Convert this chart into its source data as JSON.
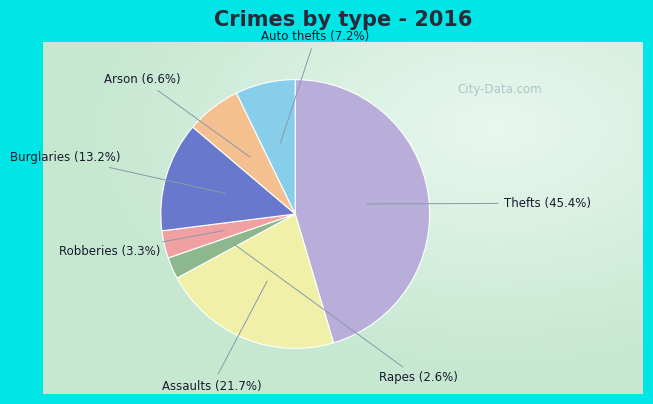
{
  "title": "Crimes by type - 2016",
  "labels": [
    "Thefts",
    "Assaults",
    "Rapes",
    "Robberies",
    "Burglaries",
    "Arson",
    "Auto thefts"
  ],
  "values": [
    45.4,
    21.7,
    2.6,
    3.3,
    13.2,
    6.6,
    7.2
  ],
  "colors": [
    "#b8aed9",
    "#f0f0a8",
    "#8db88d",
    "#f0a0a0",
    "#6878cc",
    "#f5c090",
    "#87ceeb"
  ],
  "label_texts": [
    "Thefts (45.4%)",
    "Assaults (21.7%)",
    "Rapes (2.6%)",
    "Robberies (3.3%)",
    "Burglaries (13.2%)",
    "Arson (6.6%)",
    "Auto thefts (7.2%)"
  ],
  "bg_cyan": "#00e5e5",
  "title_color": "#2a2a3a",
  "title_fontsize": 15,
  "label_fontsize": 8.5,
  "watermark": "City-Data.com",
  "watermark_color": "#a0c0c0"
}
